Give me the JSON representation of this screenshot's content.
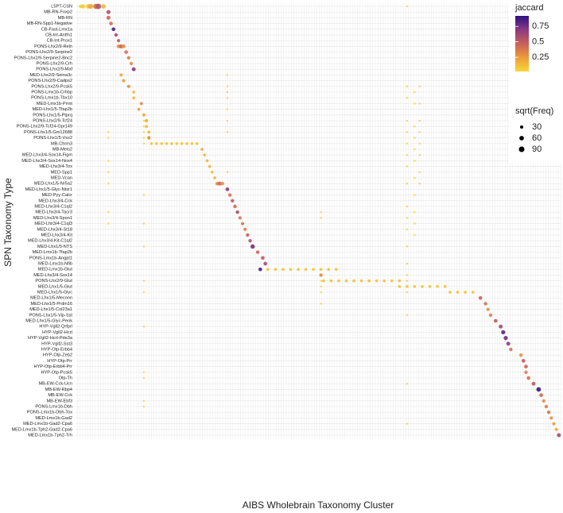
{
  "chart_data": {
    "type": "dotplot",
    "x_label": "AIBS Wholebrain Taxonomy Cluster",
    "y_label": "SPN Taxonomy Type",
    "categories": [
      "L5PT-CSN",
      "MB-RN-Foxp2",
      "MB-RN",
      "MB-RN-Spp1-Negative",
      "CB-Fast-Lmx1a",
      "CB-Int-Antfn1",
      "CB-Int-Prox1",
      "PONS-Lhx2/9-Reln",
      "PONS-Lhx2/9-Serpine2",
      "PONS-Lhx2/9-Serpine2-Bnc2",
      "PONS-Lhx2/9-Crh",
      "PONS-Lhx2/9-Maf",
      "MED-Lhx2/9-Sema3c",
      "PONS-Lhx2/9-Cadps2",
      "PONS-Lhx2/9-Pcsk5",
      "PONS-Lmx1b-Crhbp",
      "PONS-Lmx1b-Tbx10",
      "MED-Lmx1b-Prrnt",
      "MED-Lhx1/5-Tfap2b",
      "PONS-Lhx1/5-Ptprq",
      "PONS-Lhx2/9-Tcf24",
      "PONS-Lhx2/9-Tcf24-Gpr149",
      "PONS-Lhx1/5-Gm12688",
      "PONS-Lhx1/5-Vsx2",
      "MB-Chrm3",
      "MB-Meis2",
      "MED-Lhx3/4-Sox14-Figm",
      "MED-Lhx3/4-Sox14-Nox4",
      "MED-Lhx3/4-Tox",
      "MED-Spp1",
      "MED-Vcan",
      "MED-Lhx1/5-Nr5a2",
      "MED-Lhx1/5-Glyc-Ntsr1",
      "MED-Pyy-Calcr",
      "MED-Lhx3/4-Cck",
      "MED-Lhx3/4-C1ql2",
      "MED-Lhx3/4-Tacr3",
      "MED-Lhx3/4-Spon1",
      "MED-Lhx3/4-C1ql3",
      "MED-Lhx3/4-St18",
      "MED-Lhx3/4-Kit",
      "MED-Lhx3/4-Kit-C1ql2",
      "MED-Lhx1/5-NTS",
      "MED-Lmx1b-Tfap2b",
      "PONS-Lmx1b-Angpt1",
      "MED-Lmx1b-Nfib",
      "MED-Lmx1b-Glut",
      "MED-Lhx3/4-Sox14",
      "PONS-Lhx2/9-Glut",
      "MED-Lhx1/5-Glut",
      "MED-Lhx1/5-Glyc",
      "MED-Lhx1/5-Meconn",
      "MED-Lhx1/5-Prdm16",
      "MED-Lhx1/5-Col23a1",
      "PONS-Lhx1/5-Vip-Sst",
      "MED-Lhx1/5-Glyc-Penk",
      "HYP-Vgll2-Qrfprl",
      "HYP-Vgll2-Hcrt",
      "HYP-Vgll2-Hcrt-Pde3a",
      "HYP-Vgll2-Sst3",
      "HYP-Otp-Erbb4",
      "HYP-Otp-Zeb2",
      "HYP-Otp-Prr",
      "HYP-Otp-Erbb4-Prr",
      "HYP-Otp-Pcsk5",
      "Otp-Th",
      "MB-EW-Cck-Ucn",
      "MB-EW-Rbp4",
      "MB-EW-Cck",
      "MB-EW-Ebf3",
      "PONS-Lmx1b-Dbh",
      "PONS-Lmx1b-Dbh-Tox",
      "MED-Lmx1b-Gad2",
      "MED-Lmx1b-Gad2-Cpa6",
      "MED-Lmx1b-Tph2-Gad2-Cpa6",
      "MED-Lmx1b-Tph2-Trh"
    ],
    "xlim": [
      0,
      192
    ],
    "points": {
      "x": [
        2,
        3,
        5,
        6,
        8,
        9,
        11,
        13,
        13,
        14,
        15,
        16,
        17,
        17,
        18,
        19,
        20,
        21,
        22,
        23,
        18,
        19,
        21,
        23,
        23,
        26,
        25,
        27,
        28,
        28,
        29,
        29,
        30,
        32,
        34,
        36,
        38,
        40,
        42,
        44,
        46,
        48,
        50,
        51,
        52,
        53,
        54,
        55,
        56,
        57,
        58,
        60,
        61,
        62,
        63,
        64,
        65,
        66,
        67,
        68,
        69,
        70,
        72,
        74,
        75,
        73,
        76,
        79,
        82,
        85,
        88,
        91,
        94,
        97,
        100,
        103,
        97,
        98,
        101,
        104,
        107,
        110,
        113,
        116,
        119,
        122,
        125,
        128,
        128,
        131,
        134,
        137,
        140,
        143,
        146,
        148,
        151,
        154,
        157,
        160,
        162,
        163,
        164,
        166,
        168,
        169,
        170,
        171,
        172,
        176,
        177,
        178,
        178,
        179,
        181,
        183,
        184,
        185,
        186,
        187,
        188,
        189,
        190,
        191,
        13,
        13,
        13,
        13,
        13,
        13,
        13,
        27,
        27,
        27,
        27,
        27,
        27,
        27,
        27,
        27,
        27,
        27,
        27,
        27,
        27,
        27,
        60,
        60,
        60,
        60,
        60,
        60,
        60,
        60,
        97,
        97,
        97,
        97,
        97,
        97,
        131,
        131,
        131,
        131,
        131,
        131,
        131,
        131,
        131,
        131,
        131,
        131,
        131,
        131,
        131,
        131,
        131,
        131,
        131,
        131,
        134,
        134,
        134,
        134,
        134,
        134,
        134,
        134,
        134,
        134,
        134,
        136,
        136,
        136,
        136,
        136,
        136,
        136,
        136
      ],
      "y": [
        0,
        0,
        0,
        0,
        0,
        0,
        0,
        1,
        2,
        3,
        4,
        5,
        6,
        7,
        7,
        7,
        8,
        9,
        10,
        11,
        12,
        13,
        14,
        15,
        16,
        17,
        18,
        19,
        20,
        21,
        22,
        23,
        24,
        24,
        24,
        24,
        24,
        24,
        24,
        24,
        24,
        24,
        25,
        26,
        27,
        28,
        29,
        30,
        31,
        31,
        31,
        32,
        33,
        34,
        35,
        36,
        37,
        38,
        39,
        40,
        41,
        42,
        43,
        44,
        45,
        46,
        46,
        46,
        46,
        46,
        46,
        46,
        46,
        46,
        46,
        46,
        47,
        48,
        48,
        48,
        48,
        48,
        48,
        48,
        48,
        48,
        48,
        48,
        49,
        49,
        49,
        49,
        49,
        49,
        49,
        50,
        50,
        50,
        50,
        51,
        52,
        53,
        54,
        55,
        56,
        57,
        58,
        59,
        60,
        61,
        62,
        63,
        64,
        65,
        66,
        67,
        68,
        69,
        70,
        71,
        72,
        73,
        74,
        75,
        22,
        23,
        27,
        29,
        31,
        36,
        38,
        20,
        21,
        22,
        23,
        24,
        33,
        38,
        42,
        48,
        50,
        56,
        64,
        65,
        69,
        70,
        12,
        14,
        15,
        16,
        18,
        20,
        22,
        29,
        36,
        37,
        48,
        49,
        50,
        52,
        0,
        14,
        16,
        20,
        22,
        24,
        26,
        28,
        31,
        35,
        37,
        39,
        42,
        45,
        47,
        48,
        50,
        54,
        66,
        73,
        15,
        17,
        21,
        23,
        25,
        27,
        30,
        33,
        36,
        38,
        40,
        14,
        17,
        20,
        22,
        24,
        26,
        29,
        31
      ],
      "jaccard": [
        0.05,
        0.08,
        0.1,
        0.2,
        0.4,
        0.55,
        0.15,
        0.55,
        0.45,
        0.4,
        0.85,
        0.6,
        0.5,
        0.3,
        0.45,
        0.3,
        0.4,
        0.35,
        0.3,
        0.7,
        0.2,
        0.25,
        0.3,
        0.15,
        0.15,
        0.3,
        0.25,
        0.2,
        0.2,
        0.15,
        0.15,
        0.3,
        0.1,
        0.1,
        0.1,
        0.1,
        0.1,
        0.1,
        0.1,
        0.1,
        0.1,
        0.1,
        0.2,
        0.15,
        0.15,
        0.15,
        0.15,
        0.15,
        0.3,
        0.45,
        0.3,
        0.7,
        0.4,
        0.5,
        0.45,
        0.6,
        0.4,
        0.4,
        0.35,
        0.5,
        0.55,
        0.75,
        0.45,
        0.5,
        0.6,
        0.85,
        0.1,
        0.1,
        0.1,
        0.1,
        0.1,
        0.1,
        0.1,
        0.1,
        0.1,
        0.1,
        0.3,
        0.1,
        0.1,
        0.1,
        0.1,
        0.1,
        0.1,
        0.1,
        0.1,
        0.1,
        0.1,
        0.1,
        0.1,
        0.1,
        0.1,
        0.1,
        0.1,
        0.1,
        0.1,
        0.1,
        0.1,
        0.1,
        0.1,
        0.45,
        0.4,
        0.3,
        0.35,
        0.5,
        0.6,
        0.8,
        0.75,
        0.7,
        0.4,
        0.3,
        0.5,
        0.45,
        0.35,
        0.4,
        0.5,
        0.9,
        0.45,
        0.3,
        0.35,
        0.4,
        0.3,
        0.25,
        0.2,
        0.6,
        0.05,
        0.05,
        0.05,
        0.05,
        0.05,
        0.05,
        0.05,
        0.05,
        0.05,
        0.05,
        0.05,
        0.05,
        0.05,
        0.05,
        0.05,
        0.05,
        0.05,
        0.05,
        0.05,
        0.05,
        0.05,
        0.05,
        0.05,
        0.05,
        0.05,
        0.05,
        0.05,
        0.05,
        0.05,
        0.05,
        0.05,
        0.05,
        0.05,
        0.05,
        0.05,
        0.05,
        0.05,
        0.05,
        0.05,
        0.05,
        0.05,
        0.05,
        0.05,
        0.05,
        0.05,
        0.05,
        0.05,
        0.05,
        0.05,
        0.05,
        0.05,
        0.05,
        0.05,
        0.05,
        0.05,
        0.05,
        0.05,
        0.05,
        0.05,
        0.05,
        0.05,
        0.05,
        0.05,
        0.05,
        0.05,
        0.05,
        0.05,
        0.05,
        0.05,
        0.05,
        0.05,
        0.05,
        0.05,
        0.05,
        0.05
      ],
      "size": [
        40,
        50,
        60,
        70,
        80,
        90,
        60,
        50,
        45,
        40,
        40,
        35,
        30,
        40,
        50,
        40,
        40,
        35,
        35,
        45,
        30,
        30,
        30,
        25,
        25,
        30,
        25,
        30,
        30,
        25,
        25,
        35,
        25,
        25,
        25,
        25,
        25,
        25,
        25,
        25,
        25,
        25,
        25,
        25,
        25,
        25,
        25,
        25,
        40,
        45,
        40,
        40,
        35,
        35,
        35,
        35,
        30,
        30,
        30,
        35,
        35,
        55,
        35,
        40,
        40,
        40,
        25,
        25,
        25,
        25,
        25,
        25,
        25,
        25,
        25,
        25,
        35,
        25,
        25,
        25,
        25,
        25,
        25,
        25,
        25,
        25,
        25,
        25,
        25,
        25,
        25,
        25,
        25,
        25,
        25,
        25,
        25,
        25,
        25,
        40,
        35,
        30,
        35,
        40,
        45,
        50,
        50,
        45,
        35,
        35,
        40,
        40,
        35,
        40,
        45,
        60,
        40,
        35,
        35,
        35,
        30,
        30,
        30,
        45,
        10,
        10,
        10,
        10,
        10,
        10,
        10,
        10,
        10,
        10,
        10,
        10,
        10,
        10,
        10,
        10,
        10,
        10,
        10,
        10,
        10,
        10,
        10,
        10,
        10,
        10,
        10,
        10,
        10,
        10,
        10,
        10,
        10,
        10,
        10,
        10,
        10,
        10,
        10,
        10,
        10,
        10,
        10,
        10,
        10,
        10,
        10,
        10,
        10,
        10,
        10,
        10,
        10,
        10,
        10,
        10,
        10,
        10,
        10,
        10,
        10,
        10,
        10,
        10,
        10,
        10,
        10,
        10,
        10,
        10,
        10,
        10,
        10,
        10,
        10
      ]
    },
    "color_title": "jaccard",
    "color_lim": [
      0.02,
      0.92
    ],
    "color_stops": [
      "#f5d93a",
      "#ec9b3b",
      "#c8605a",
      "#8b3a82",
      "#2c1280"
    ],
    "color_ticks": [
      0.25,
      0.5,
      0.75
    ],
    "size_title": "sqrt(Freq)",
    "size_ticks": [
      30,
      60,
      90
    ],
    "grid": true
  }
}
